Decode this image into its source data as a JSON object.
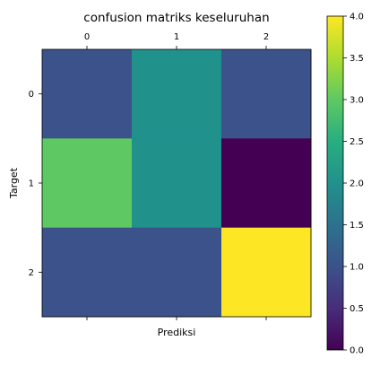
{
  "chart_data": {
    "type": "heatmap",
    "title": "confusion matriks keseluruhan",
    "xlabel": "Prediksi",
    "ylabel": "Target",
    "x_categories": [
      "0",
      "1",
      "2"
    ],
    "y_categories": [
      "0",
      "1",
      "2"
    ],
    "matrix": [
      [
        1,
        2,
        1
      ],
      [
        3,
        2,
        0
      ],
      [
        1,
        1,
        4
      ]
    ],
    "x_ticks_position": "top",
    "colormap": "viridis",
    "colorbar": {
      "range": [
        0.0,
        4.0
      ],
      "ticks": [
        "0.0",
        "0.5",
        "1.0",
        "1.5",
        "2.0",
        "2.5",
        "3.0",
        "3.5",
        "4.0"
      ],
      "tick_values": [
        0.0,
        0.5,
        1.0,
        1.5,
        2.0,
        2.5,
        3.0,
        3.5,
        4.0
      ]
    }
  }
}
